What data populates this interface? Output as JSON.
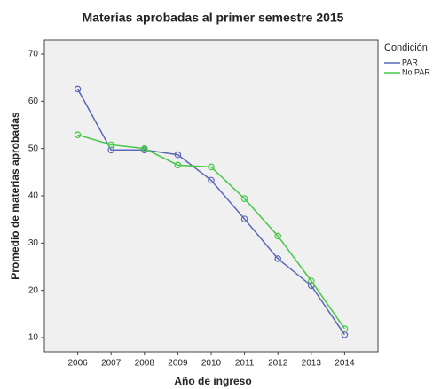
{
  "chart_data": {
    "type": "line",
    "title": "Materias aprobadas al primer semestre 2015",
    "x_label": "Año de ingreso",
    "y_label": "Promedio de materias aprobadas",
    "legend_title": "Condición",
    "legend": "right",
    "x": [
      2006,
      2007,
      2008,
      2009,
      2010,
      2011,
      2012,
      2013,
      2014
    ],
    "xlim": [
      2005,
      2015
    ],
    "xticks": [
      2006,
      2007,
      2008,
      2009,
      2010,
      2011,
      2012,
      2013,
      2014
    ],
    "ylim": [
      7,
      73
    ],
    "yticks": [
      10,
      20,
      30,
      40,
      50,
      60,
      70
    ],
    "series": [
      {
        "name": "PAR",
        "color": "#5b68b8",
        "values": [
          62.6,
          49.7,
          49.7,
          48.7,
          43.3,
          35.1,
          26.7,
          21.0,
          10.6
        ]
      },
      {
        "name": "No PAR",
        "color": "#46c846",
        "values": [
          52.9,
          50.8,
          50.0,
          46.5,
          46.1,
          39.4,
          31.5,
          22.0,
          11.9
        ]
      }
    ]
  }
}
